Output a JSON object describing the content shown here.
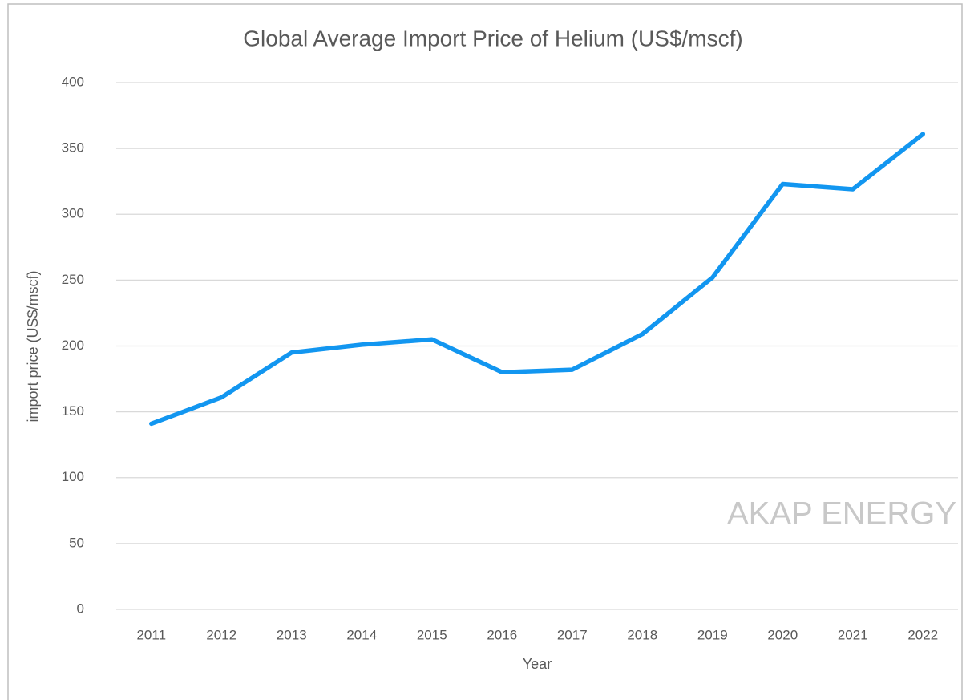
{
  "chart_data": {
    "type": "line",
    "title": "Global Average Import Price of Helium (US$/mscf)",
    "x_label": "Year",
    "y_label": "import price (US$/mscf)",
    "annotation": "AKAP ENERGY",
    "categories": [
      "2011",
      "2012",
      "2013",
      "2014",
      "2015",
      "2016",
      "2017",
      "2018",
      "2019",
      "2020",
      "2021",
      "2022"
    ],
    "values": [
      141,
      161,
      195,
      201,
      205,
      180,
      182,
      209,
      252,
      323,
      319,
      361
    ],
    "color": "#1296f0",
    "ylim": [
      0,
      400
    ],
    "yticks": [
      0,
      50,
      100,
      150,
      200,
      250,
      300,
      350,
      400
    ],
    "grid": true
  }
}
